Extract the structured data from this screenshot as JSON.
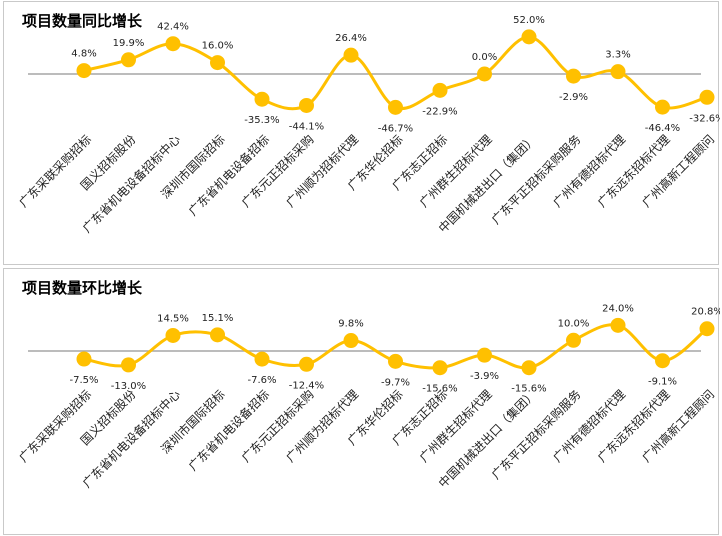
{
  "chart_data": [
    {
      "type": "line",
      "title": "项目数量同比增长",
      "categories": [
        "广东采联采购招标",
        "国义招标股份",
        "广东省机电设备招标中心",
        "深圳市国际招标",
        "广东省机电设备招标",
        "广东元正招标采购",
        "广州顺为招标代理",
        "广东华伦招标",
        "广东志正招标",
        "广州群生招标代理",
        "中国机械进出口（集团）",
        "广东平正招标采购服务",
        "广州有德招标代理",
        "广东远东招标代理",
        "广州高新工程顾问"
      ],
      "values": [
        4.8,
        19.9,
        42.4,
        16.0,
        -35.3,
        -44.1,
        26.4,
        -46.7,
        -22.9,
        0.0,
        52.0,
        -2.9,
        3.3,
        -46.4,
        -32.6
      ],
      "value_labels": [
        "4.8%",
        "19.9%",
        "42.4%",
        "16.0%",
        "-35.3%",
        "-44.1%",
        "26.4%",
        "-46.7%",
        "-22.9%",
        "0.0%",
        "52.0%",
        "-2.9%",
        "3.3%",
        "-46.4%",
        "-32.6%"
      ],
      "color": "#FFC000",
      "baseline_color": "#a6a6a6",
      "legend": "none"
    },
    {
      "type": "line",
      "title": "项目数量环比增长",
      "categories": [
        "广东采联采购招标",
        "国义招标股份",
        "广东省机电设备招标中心",
        "深圳市国际招标",
        "广东省机电设备招标",
        "广东元正招标采购",
        "广州顺为招标代理",
        "广东华伦招标",
        "广东志正招标",
        "广州群生招标代理",
        "中国机械进出口（集团）",
        "广东平正招标采购服务",
        "广州有德招标代理",
        "广东远东招标代理",
        "广州高新工程顾问"
      ],
      "values": [
        -7.5,
        -13.0,
        14.5,
        15.1,
        -7.6,
        -12.4,
        9.8,
        -9.7,
        -15.6,
        -3.9,
        -15.6,
        10.0,
        24.0,
        -9.1,
        20.8
      ],
      "value_labels": [
        "-7.5%",
        "-13.0%",
        "14.5%",
        "15.1%",
        "-7.6%",
        "-12.4%",
        "9.8%",
        "-9.7%",
        "-15.6%",
        "-3.9%",
        "-15.6%",
        "10.0%",
        "24.0%",
        "-9.1%",
        "20.8%"
      ],
      "color": "#FFC000",
      "baseline_color": "#a6a6a6",
      "legend": "none"
    }
  ]
}
